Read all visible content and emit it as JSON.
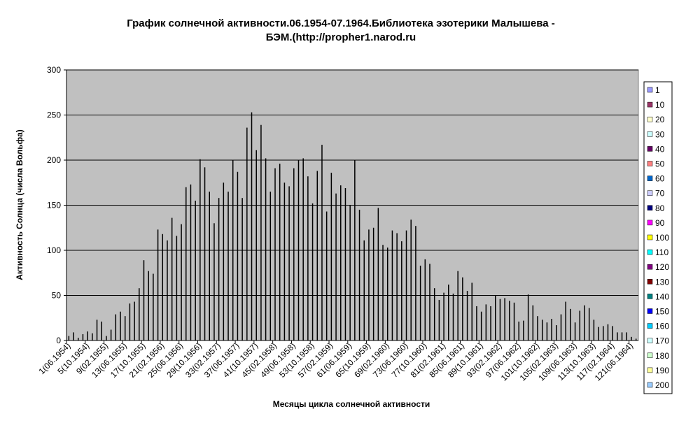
{
  "chart_data": {
    "type": "bar",
    "title": [
      "График солнечной активности.06.1954-07.1964.Библиотека эзотерики Малышева -",
      "БЭМ.(http://propher1.narod.ru"
    ],
    "x_label": "Месяцы цикла солнечной активности",
    "y_label": "Активность Солнца (числа Вольфа)",
    "color": "#000000",
    "categories": [
      "1(06.1954)",
      null,
      null,
      null,
      "5(10.1954)",
      null,
      null,
      null,
      "9(02.1955)",
      null,
      null,
      null,
      "13(06.1955)",
      null,
      null,
      null,
      "17(10.1955)",
      null,
      null,
      null,
      "21(02.1956)",
      null,
      null,
      null,
      "25(06.1956)",
      null,
      null,
      null,
      "29(10.1956)",
      null,
      null,
      null,
      "33(02.1957)",
      null,
      null,
      null,
      "37(06.1957)",
      null,
      null,
      null,
      "41(10.1957)",
      null,
      null,
      null,
      "45(02.1958)",
      null,
      null,
      null,
      "49(06.1958)",
      null,
      null,
      null,
      "53(10.1958)",
      null,
      null,
      null,
      "57(02.1959)",
      null,
      null,
      null,
      "61(06.1959)",
      null,
      null,
      null,
      "65(10.1959)",
      null,
      null,
      null,
      "69(02.1960)",
      null,
      null,
      null,
      "73(06.1960)",
      null,
      null,
      null,
      "77(10.1960)",
      null,
      null,
      null,
      "81(02.1961)",
      null,
      null,
      null,
      "85(06.1961)",
      null,
      null,
      null,
      "89(10.1961)",
      null,
      null,
      null,
      "93(02.1962)",
      null,
      null,
      null,
      "97(06.1962)",
      null,
      null,
      null,
      "101(10.1962)",
      null,
      null,
      null,
      "105(02.1963)",
      null,
      null,
      null,
      "109(06.1963)",
      null,
      null,
      null,
      "113(10.1963)",
      null,
      null,
      null,
      "117(02.1964)",
      null,
      null,
      null,
      "121(06.1964)",
      null
    ],
    "values": [
      5,
      9,
      3,
      7,
      10,
      8,
      23,
      21,
      5,
      12,
      29,
      32,
      27,
      41,
      43,
      58,
      89,
      77,
      74,
      123,
      118,
      111,
      136,
      116,
      129,
      170,
      173,
      155,
      201,
      192,
      165,
      130,
      158,
      175,
      165,
      200,
      187,
      158,
      236,
      253,
      211,
      239,
      202,
      165,
      191,
      196,
      175,
      171,
      191,
      200,
      202,
      182,
      152,
      188,
      217,
      143,
      186,
      163,
      172,
      169,
      150,
      200,
      145,
      111,
      123,
      125,
      147,
      106,
      103,
      122,
      119,
      110,
      122,
      134,
      127,
      83,
      90,
      85,
      58,
      45,
      53,
      62,
      52,
      77,
      70,
      55,
      64,
      38,
      32,
      40,
      38,
      50,
      46,
      47,
      44,
      42,
      21,
      22,
      51,
      39,
      27,
      23,
      20,
      24,
      17,
      29,
      43,
      35,
      20,
      33,
      39,
      36,
      23,
      15,
      16,
      18,
      16,
      9,
      9,
      9,
      4,
      2
    ],
    "ylim": [
      0,
      300
    ],
    "yticks": [
      0,
      50,
      100,
      150,
      200,
      250,
      300
    ],
    "grid": true,
    "legend": [
      {
        "name": "1",
        "color": "#9999ff"
      },
      {
        "name": "10",
        "color": "#993366"
      },
      {
        "name": "20",
        "color": "#ffffcc"
      },
      {
        "name": "30",
        "color": "#ccffff"
      },
      {
        "name": "40",
        "color": "#660066"
      },
      {
        "name": "50",
        "color": "#ff8080"
      },
      {
        "name": "60",
        "color": "#0066cc"
      },
      {
        "name": "70",
        "color": "#ccccff"
      },
      {
        "name": "80",
        "color": "#000080"
      },
      {
        "name": "90",
        "color": "#ff00ff"
      },
      {
        "name": "100",
        "color": "#ffff00"
      },
      {
        "name": "110",
        "color": "#00ffff"
      },
      {
        "name": "120",
        "color": "#800080"
      },
      {
        "name": "130",
        "color": "#800000"
      },
      {
        "name": "140",
        "color": "#008080"
      },
      {
        "name": "150",
        "color": "#0000ff"
      },
      {
        "name": "160",
        "color": "#00ccff"
      },
      {
        "name": "170",
        "color": "#ccffff"
      },
      {
        "name": "180",
        "color": "#ccffcc"
      },
      {
        "name": "190",
        "color": "#ffff99"
      },
      {
        "name": "200",
        "color": "#99ccff"
      }
    ]
  }
}
